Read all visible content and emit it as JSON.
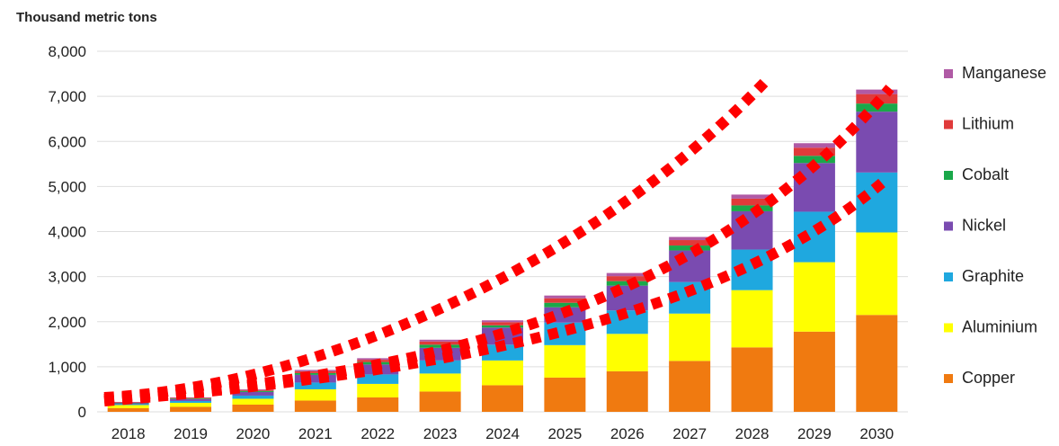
{
  "chart_data": {
    "type": "bar",
    "stacked": true,
    "ylabel": "Thousand metric tons",
    "ylim": [
      0,
      8000
    ],
    "yticks": [
      "0",
      "1,000",
      "2,000",
      "3,000",
      "4,000",
      "5,000",
      "6,000",
      "7,000",
      "8,000"
    ],
    "ytick_values": [
      0,
      1000,
      2000,
      3000,
      4000,
      5000,
      6000,
      7000,
      8000
    ],
    "grid": true,
    "legend_position": "right",
    "categories": [
      "2018",
      "2019",
      "2020",
      "2021",
      "2022",
      "2023",
      "2024",
      "2025",
      "2026",
      "2027",
      "2028",
      "2029",
      "2030"
    ],
    "series": [
      {
        "name": "Copper",
        "color": "#f07a10",
        "values": [
          80,
          110,
          160,
          250,
          320,
          450,
          590,
          760,
          900,
          1130,
          1430,
          1780,
          2150
        ]
      },
      {
        "name": "Aluminium",
        "color": "#ffff00",
        "values": [
          70,
          90,
          130,
          250,
          300,
          400,
          550,
          720,
          830,
          1050,
          1270,
          1540,
          1830
        ]
      },
      {
        "name": "Graphite",
        "color": "#1fa8df",
        "values": [
          20,
          40,
          70,
          150,
          210,
          290,
          350,
          500,
          520,
          700,
          900,
          1120,
          1330
        ]
      },
      {
        "name": "Nickel",
        "color": "#7a4bb0",
        "values": [
          20,
          40,
          80,
          170,
          220,
          280,
          380,
          340,
          550,
          700,
          850,
          1080,
          1350
        ]
      },
      {
        "name": "Cobalt",
        "color": "#1aa84a",
        "values": [
          10,
          15,
          25,
          40,
          55,
          70,
          50,
          100,
          100,
          110,
          130,
          160,
          180
        ]
      },
      {
        "name": "Lithium",
        "color": "#e03a3a",
        "values": [
          10,
          15,
          20,
          40,
          50,
          70,
          70,
          100,
          110,
          120,
          150,
          180,
          210
        ]
      },
      {
        "name": "Manganese",
        "color": "#b05aa5",
        "values": [
          10,
          10,
          15,
          30,
          35,
          40,
          40,
          60,
          70,
          70,
          90,
          100,
          100
        ]
      }
    ],
    "annotations": {
      "style": "dotted-trend-curve",
      "color": "#ff0000",
      "count": 3
    }
  }
}
